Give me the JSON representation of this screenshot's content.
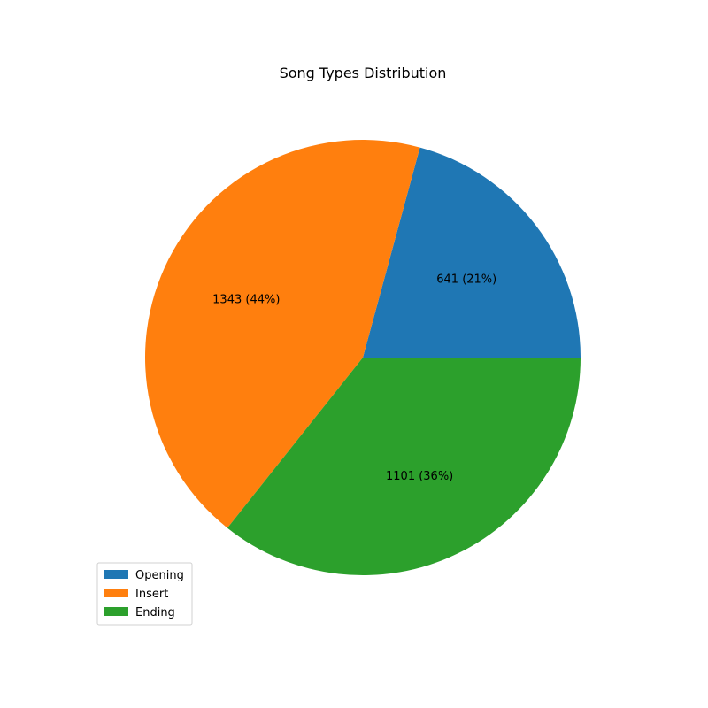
{
  "chart_data": {
    "type": "pie",
    "title": "Song Types Distribution",
    "slices": [
      {
        "label": "Opening",
        "value": 641,
        "percent_label": "21%",
        "color": "#1f77b4"
      },
      {
        "label": "Insert",
        "value": 1343,
        "percent_label": "44%",
        "color": "#ff7f0e"
      },
      {
        "label": "Ending",
        "value": 1101,
        "percent_label": "36%",
        "color": "#2ca02c"
      }
    ],
    "start_angle_deg": 0,
    "direction": "counterclockwise",
    "legend": {
      "position": "lower-left",
      "entries": [
        "Opening",
        "Insert",
        "Ending"
      ]
    }
  }
}
